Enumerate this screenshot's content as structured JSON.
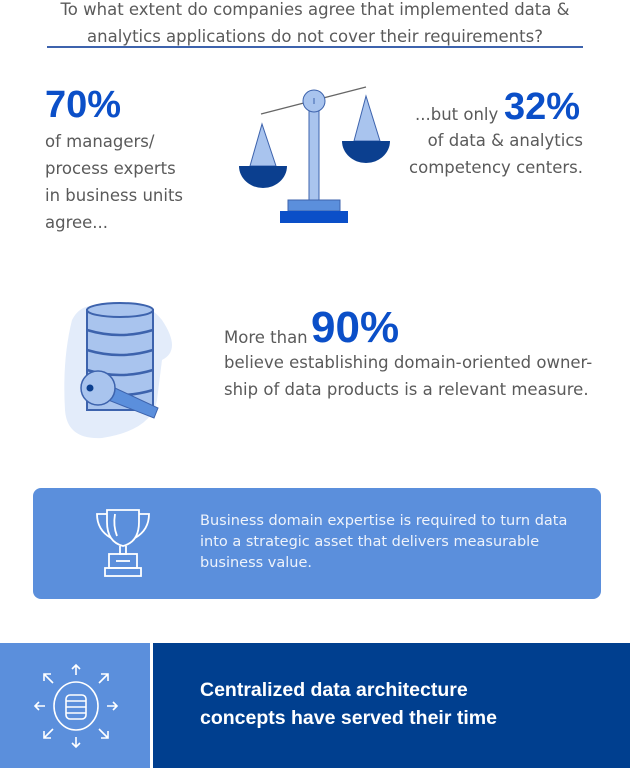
{
  "header": {
    "question_line1": "To what extent do companies agree that implemented data &",
    "question_line2": "analytics applications do not cover their requirements?"
  },
  "stat1": {
    "value": "70%",
    "lines": [
      "of managers/",
      "process experts",
      "in business units",
      "agree..."
    ]
  },
  "stat2": {
    "prefix": "...but only",
    "value": "32%",
    "lines": [
      "of data & analytics",
      "competency centers."
    ]
  },
  "stat3": {
    "prefix": "More than",
    "value": "90%",
    "lines": [
      "believe establishing domain-oriented owner-",
      "ship of data products is a relevant measure."
    ]
  },
  "card": {
    "text": "Business domain expertise is required to turn data into a strategic asset that delivers measurable business value.",
    "icon": "trophy-icon"
  },
  "banner": {
    "line1": "Centralized data architecture",
    "line2": "concepts have served their time",
    "icon": "database-distribute-icon"
  },
  "colors": {
    "accent": "#0b4fc8",
    "light_blue": "#5b8fdc",
    "dark_blue": "#003f8f",
    "pale_blue": "#a9c4ee"
  }
}
